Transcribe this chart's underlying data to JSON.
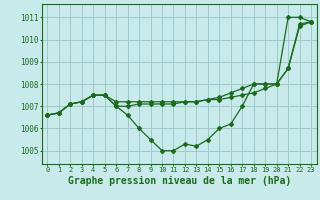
{
  "background_color": "#c8eaea",
  "grid_color": "#a0c8c8",
  "line_color": "#1a6b1a",
  "xlabel": "Graphe pression niveau de la mer (hPa)",
  "xlabel_fontsize": 7,
  "ytick_labels": [
    1005,
    1006,
    1007,
    1008,
    1009,
    1010,
    1011
  ],
  "ylim": [
    1004.4,
    1011.6
  ],
  "xlim": [
    -0.5,
    23.5
  ],
  "series": [
    [
      1006.6,
      1006.7,
      1007.1,
      1007.2,
      1007.5,
      1007.5,
      1007.2,
      1007.2,
      1007.2,
      1007.2,
      1007.2,
      1007.2,
      1007.2,
      1007.2,
      1007.3,
      1007.4,
      1007.6,
      1007.8,
      1008.0,
      1008.0,
      1008.0,
      1008.7,
      1010.7,
      1010.8
    ],
    [
      1006.6,
      1006.7,
      1007.1,
      1007.2,
      1007.5,
      1007.5,
      1007.0,
      1006.6,
      1006.0,
      1005.5,
      1005.0,
      1005.0,
      1005.3,
      1005.2,
      1005.5,
      1006.0,
      1006.2,
      1007.0,
      1008.0,
      1008.0,
      1008.0,
      1011.0,
      1011.0,
      1010.8
    ],
    [
      1006.6,
      1006.7,
      1007.1,
      1007.2,
      1007.5,
      1007.5,
      1007.0,
      1007.0,
      1007.1,
      1007.1,
      1007.1,
      1007.1,
      1007.2,
      1007.2,
      1007.3,
      1007.3,
      1007.4,
      1007.5,
      1007.6,
      1007.8,
      1008.0,
      1008.7,
      1010.6,
      1010.8
    ]
  ]
}
